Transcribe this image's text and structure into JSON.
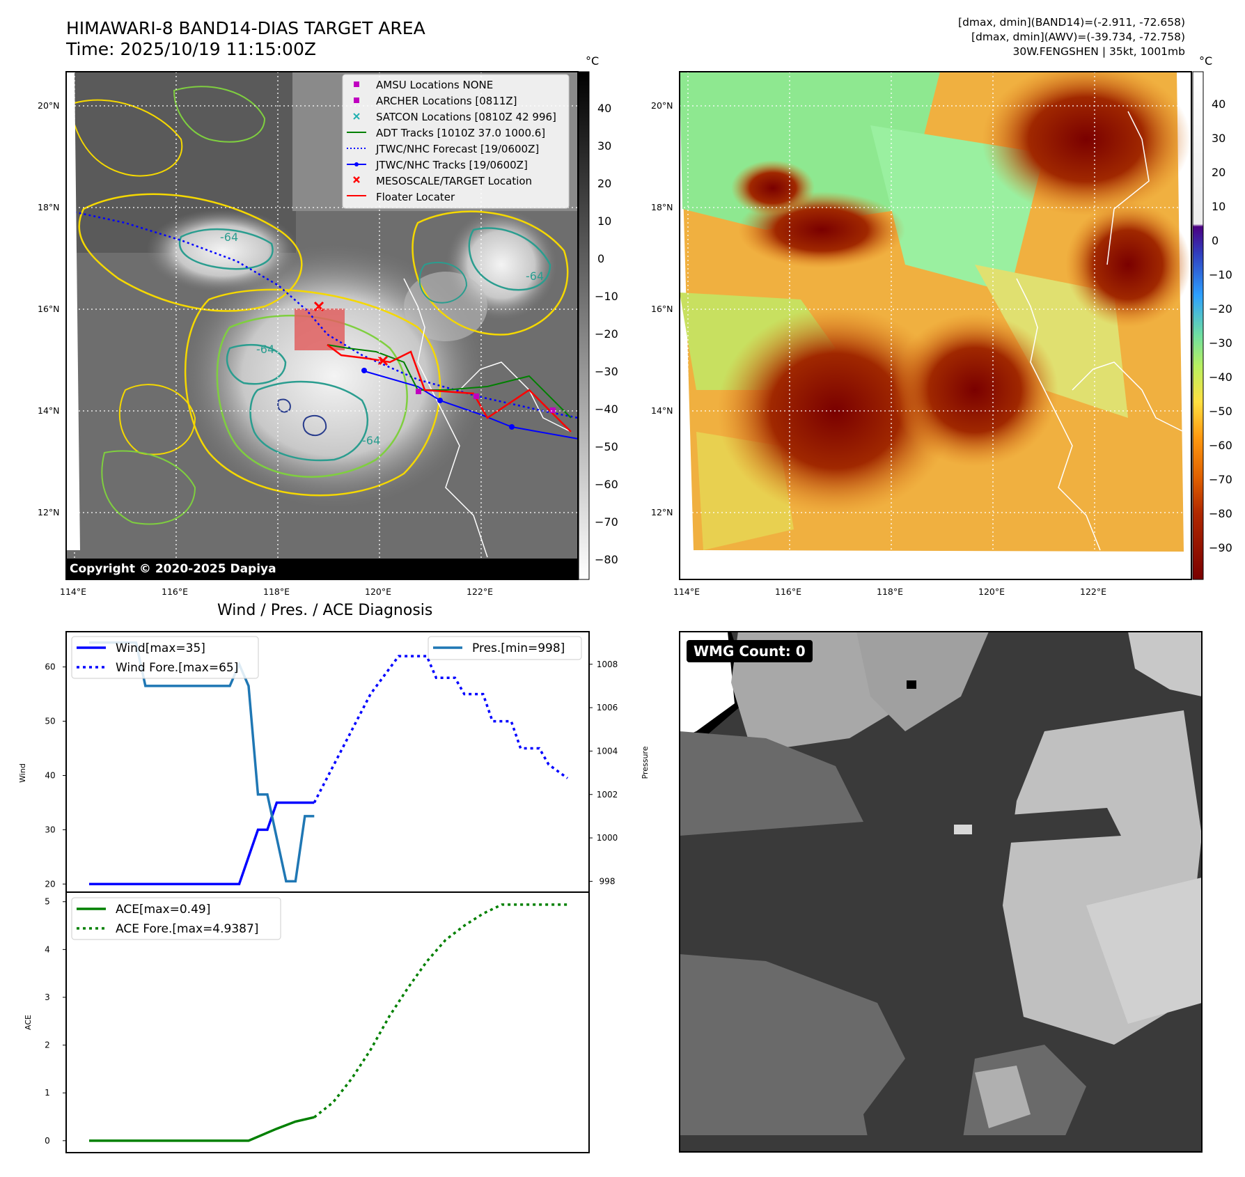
{
  "header": {
    "title": "HIMAWARI-8 BAND14-DIAS TARGET AREA",
    "time": "Time: 2025/10/19 11:15:00Z",
    "info_line1": "[dmax, dmin](BAND14)=(-2.911, -72.658)",
    "info_line2": "[dmax, dmin](AWV)=(-39.734, -72.758)",
    "info_line3": "30W.FENGSHEN | 35kt, 1001mb"
  },
  "map_axes": {
    "lon_labels": [
      "114°E",
      "116°E",
      "118°E",
      "120°E",
      "122°E"
    ],
    "lat_labels": [
      "20°N",
      "18°N",
      "16°N",
      "14°N",
      "12°N"
    ]
  },
  "legend_left": {
    "items": [
      {
        "label": "AMSU Locations NONE",
        "marker": "square",
        "color": "#c000c0"
      },
      {
        "label": "ARCHER Locations [0811Z]",
        "marker": "square",
        "color": "#c000c0"
      },
      {
        "label": "SATCON Locations [0810Z 42 996]",
        "marker": "x",
        "color": "#20b0b0"
      },
      {
        "label": "ADT Tracks [1010Z 37.0 1000.6]",
        "marker": "line",
        "color": "#008000"
      },
      {
        "label": "JTWC/NHC Forecast [19/0600Z]",
        "marker": "dotted",
        "color": "#0000ff"
      },
      {
        "label": "JTWC/NHC Tracks [19/0600Z]",
        "marker": "line-dot",
        "color": "#0000ff"
      },
      {
        "label": "MESOSCALE/TARGET Location",
        "marker": "x",
        "color": "#ff0000"
      },
      {
        "label": "Floater Locater",
        "marker": "line",
        "color": "#ff0000"
      }
    ]
  },
  "colorbar_left": {
    "unit": "°C",
    "labels": [
      "40",
      "30",
      "20",
      "10",
      "0",
      "−10",
      "−20",
      "−30",
      "−40",
      "−50",
      "−60",
      "−70",
      "−80"
    ]
  },
  "colorbar_right": {
    "unit": "°C",
    "labels": [
      "40",
      "30",
      "20",
      "10",
      "0",
      "−10",
      "−20",
      "−30",
      "−40",
      "−50",
      "−60",
      "−70",
      "−80",
      "−90"
    ]
  },
  "contour_label": "-64",
  "copyright": "Copyright © 2020-2025 Dapiya",
  "diagnosis_title": "Wind / Pres. / ACE Diagnosis",
  "wmg_label": "WMG Count: 0",
  "colors": {
    "wind": "#0000ff",
    "pressure": "#1f77b4",
    "ace": "#008000",
    "floater": "#ff0000",
    "contour_yellow": "#f5d800",
    "contour_green": "#7fcf3f",
    "contour_teal": "#2a9d8f",
    "contour_navy": "#283c8c"
  },
  "chart_data": [
    {
      "type": "line",
      "name": "wind_pressure",
      "ylabel": "Wind",
      "y2label": "Pressure",
      "ylim": [
        18.5,
        66.5
      ],
      "y2lim": [
        997.5,
        1009.5
      ],
      "yticks": [
        "20",
        "30",
        "40",
        "50",
        "60"
      ],
      "y2ticks": [
        "998",
        "1000",
        "1002",
        "1004",
        "1006",
        "1008"
      ],
      "legend_left": [
        "Wind[max=35]",
        "Wind Fore.[max=65]"
      ],
      "legend_right": [
        "Pres.[min=998]"
      ],
      "series": [
        {
          "name": "Wind[max=35]",
          "axis": "left",
          "style": "solid",
          "x": [
            0,
            1,
            2,
            3,
            4,
            5,
            6,
            7,
            8,
            9,
            10,
            11,
            12,
            13,
            14,
            15,
            16,
            17,
            18,
            19,
            20,
            21,
            22,
            23,
            24
          ],
          "y": [
            20,
            20,
            20,
            20,
            20,
            20,
            20,
            20,
            20,
            20,
            20,
            20,
            20,
            20,
            20,
            20,
            20,
            25,
            30,
            30,
            35,
            35,
            35,
            35,
            35
          ]
        },
        {
          "name": "Wind Fore.[max=65]",
          "axis": "left",
          "style": "dotted",
          "x": [
            24,
            27,
            30,
            33,
            34,
            36,
            37,
            39,
            40,
            42,
            43,
            45,
            46,
            48,
            49,
            51
          ],
          "y": [
            35,
            45,
            55,
            62,
            62,
            62,
            58,
            58,
            55,
            55,
            50,
            50,
            45,
            45,
            42,
            39.5
          ]
        },
        {
          "name": "Pres.[min=998]",
          "axis": "right",
          "style": "solid",
          "x": [
            0,
            3,
            4,
            5,
            6,
            7,
            8,
            9,
            10,
            11,
            12,
            13,
            14,
            15,
            16,
            17,
            18,
            19,
            20,
            21,
            22,
            23,
            24
          ],
          "y": [
            1009,
            1009,
            1009,
            1009,
            1007,
            1007,
            1007,
            1007,
            1007,
            1007,
            1007,
            1007,
            1007,
            1007,
            1008,
            1007,
            1002,
            1002,
            1000,
            998,
            998,
            1001,
            1001
          ]
        }
      ]
    },
    {
      "type": "line",
      "name": "ace",
      "ylabel": "ACE",
      "ylim": [
        -0.25,
        5.2
      ],
      "yticks": [
        "0",
        "1",
        "2",
        "3",
        "4",
        "5"
      ],
      "legend": [
        "ACE[max=0.49]",
        "ACE Fore.[max=4.9387]"
      ],
      "series": [
        {
          "name": "ACE[max=0.49]",
          "style": "solid",
          "x": [
            0,
            4,
            8,
            12,
            16,
            17,
            20,
            22,
            24
          ],
          "y": [
            0,
            0,
            0,
            0,
            0,
            0,
            0.25,
            0.4,
            0.49
          ]
        },
        {
          "name": "ACE Fore.[max=4.9387]",
          "style": "dotted",
          "x": [
            24,
            26,
            28,
            30,
            32,
            34,
            36,
            38,
            40,
            42,
            44,
            46,
            48,
            50,
            51
          ],
          "y": [
            0.49,
            0.8,
            1.3,
            1.9,
            2.6,
            3.2,
            3.75,
            4.2,
            4.5,
            4.75,
            4.94,
            4.94,
            4.94,
            4.94,
            4.94
          ]
        }
      ]
    }
  ]
}
